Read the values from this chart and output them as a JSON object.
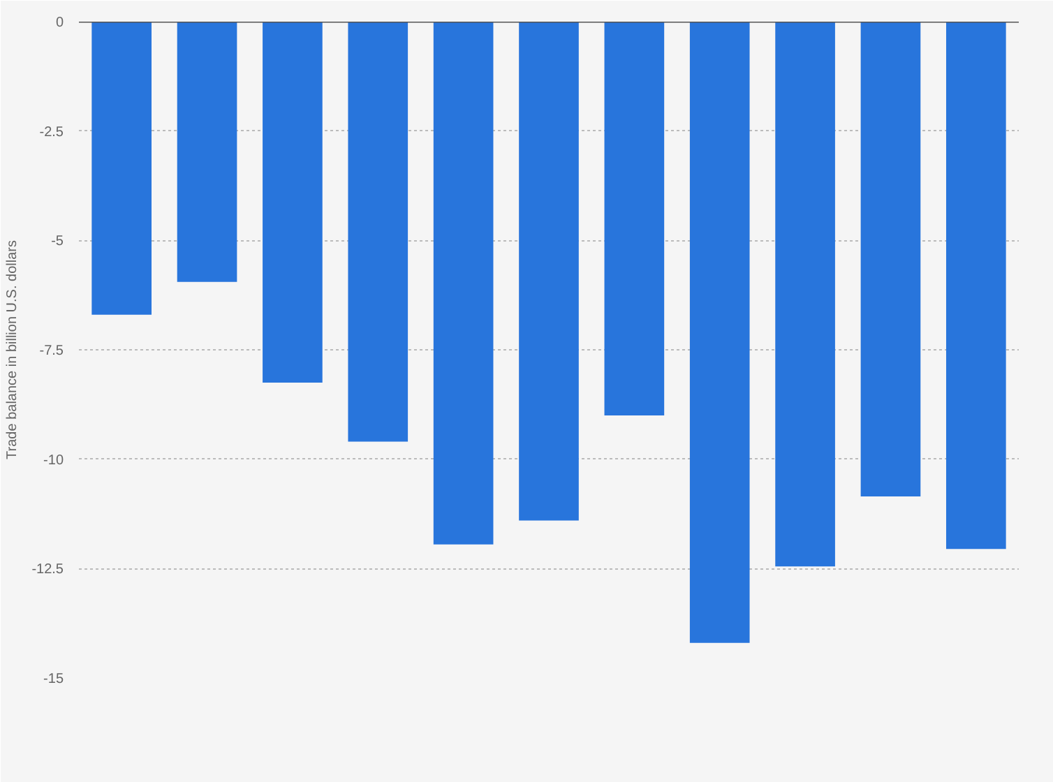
{
  "chart_data": {
    "type": "bar",
    "ylabel": "Trade balance in billion U.S. dollars",
    "categories": [
      null,
      null,
      null,
      null,
      null,
      null,
      null,
      null,
      null,
      null,
      null
    ],
    "series": [
      {
        "color": "#2875dc",
        "values": [
          -6.7,
          -5.95,
          -8.25,
          -9.6,
          -11.95,
          -11.4,
          -9.0,
          -14.2,
          -12.45,
          -10.85,
          -12.05
        ]
      }
    ],
    "ylim": [
      -15,
      0
    ],
    "yticks": [
      0,
      -2.5,
      -5,
      -7.5,
      -10,
      -12.5,
      -15
    ],
    "grid": "y",
    "tick_labels": "y"
  }
}
